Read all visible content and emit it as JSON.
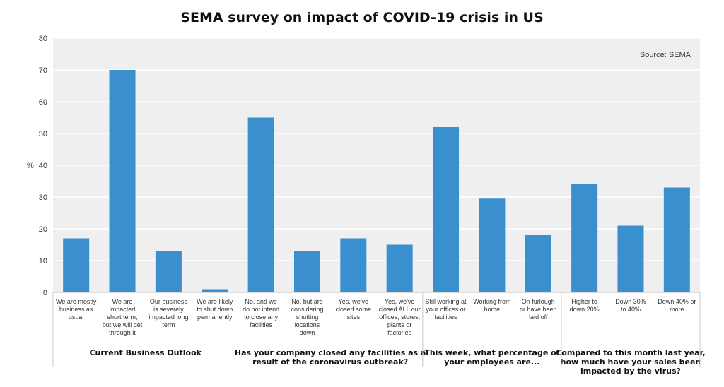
{
  "chart_data": {
    "type": "bar",
    "title": "SEMA survey on impact of COVID-19 crisis in US",
    "ylabel": "%",
    "ylim": [
      0,
      80
    ],
    "yticks": [
      0,
      10,
      20,
      30,
      40,
      50,
      60,
      70,
      80
    ],
    "grid": true,
    "source_note": "Source: SEMA",
    "colors": {
      "bar": "#3A8FCE",
      "plot_bg": "#EFEFEF",
      "grid": "#FFFFFF"
    },
    "groups": [
      {
        "label": [
          "Current Business Outlook"
        ],
        "categories": [
          [
            "We are mostly",
            "business as",
            "usual"
          ],
          [
            "We are",
            "impacted",
            "short term,",
            "but we will get",
            "through it"
          ],
          [
            "Our business",
            "is severely",
            "impacted long",
            "term"
          ],
          [
            "We are likely",
            "to shut down",
            "permanently"
          ]
        ],
        "values": [
          17,
          70,
          13,
          1
        ]
      },
      {
        "label": [
          "Has your company closed any facilities as a",
          "result of the coronavirus outbreak?"
        ],
        "categories": [
          [
            "No, and we",
            "do not intend",
            "to close any",
            "facilities"
          ],
          [
            "No, but are",
            "considering",
            "shutting",
            "locations",
            "down"
          ],
          [
            "Yes, we've",
            "closed some",
            "sites"
          ],
          [
            "Yes, we've",
            "closed ALL our",
            "offices, stores,",
            "plants or",
            "factories"
          ]
        ],
        "values": [
          55,
          13,
          17,
          15
        ]
      },
      {
        "label": [
          "This week, what percentage of",
          "your employees are..."
        ],
        "categories": [
          [
            "Still working at",
            "your offices or",
            "facilities"
          ],
          [
            "Working from",
            "home"
          ],
          [
            "On furlough",
            "or have been",
            "laid off"
          ]
        ],
        "values": [
          52,
          29.5,
          18
        ]
      },
      {
        "label": [
          "Compared to this month last year,",
          "how much have your sales been",
          "impacted by the virus?"
        ],
        "categories": [
          [
            "Higher to",
            "down 20%"
          ],
          [
            "Down 30%",
            "to 40%"
          ],
          [
            "Down 40% or",
            "more"
          ]
        ],
        "values": [
          34,
          21,
          33
        ]
      }
    ]
  }
}
